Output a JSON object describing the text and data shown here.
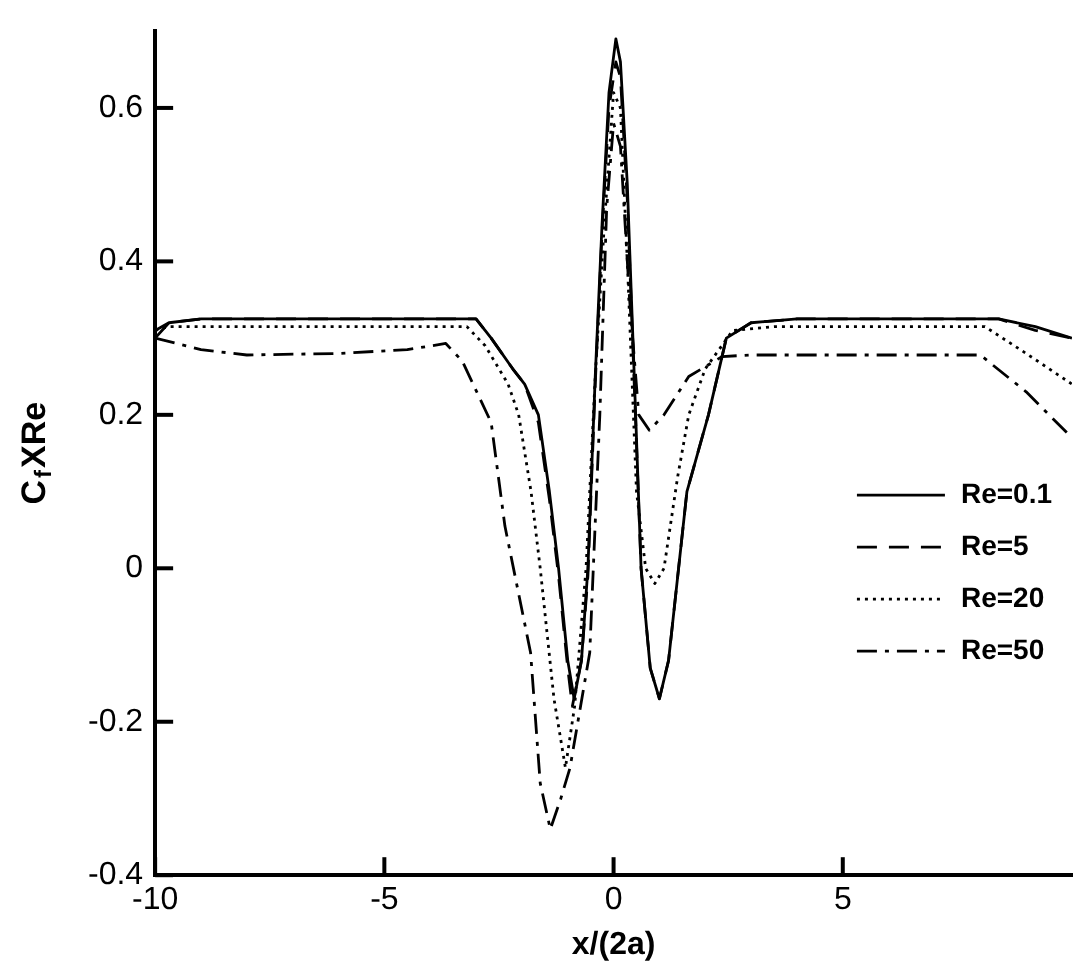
{
  "chart_data": {
    "type": "line",
    "xlabel": "x/(2a)",
    "ylabel": "C$_{f}$XRe",
    "xlim": [
      -10,
      10
    ],
    "ylim": [
      -0.4,
      0.7
    ],
    "xticks": [
      -10,
      -5,
      0,
      5
    ],
    "yticks": [
      -0.4,
      -0.2,
      0,
      0.2,
      0.4,
      0.6
    ],
    "grid": false,
    "legend": "right",
    "marker": "none",
    "series": [
      {
        "name": "Re=0.1",
        "color": "#000000",
        "line_style": "solid",
        "x": [
          -10,
          -9.7,
          -9,
          -5,
          -3,
          -2.67,
          -2.2,
          -1.94,
          -1.64,
          -1.4,
          -1.2,
          -1,
          -0.86,
          -0.7,
          -0.56,
          -0.4,
          -0.25,
          -0.1,
          0.05,
          0.15,
          0.3,
          0.47,
          0.6,
          0.8,
          1,
          1.2,
          1.6,
          2.07,
          2.46,
          3,
          4,
          8.4,
          9.2,
          10
        ],
        "values": [
          0.31,
          0.32,
          0.325,
          0.325,
          0.325,
          0.3,
          0.26,
          0.24,
          0.2,
          0.1,
          0,
          -0.12,
          -0.17,
          -0.12,
          0,
          0.25,
          0.45,
          0.62,
          0.69,
          0.66,
          0.5,
          0.22,
          0,
          -0.13,
          -0.17,
          -0.12,
          0.1,
          0.2,
          0.3,
          0.32,
          0.325,
          0.325,
          0.315,
          0.3
        ]
      },
      {
        "name": "Re=5",
        "color": "#000000",
        "line_style": "dashed",
        "x": [
          -10,
          -9.7,
          -9,
          -5,
          -3,
          -2.67,
          -2.2,
          -1.94,
          -1.64,
          -1.4,
          -1.2,
          -1,
          -0.9,
          -0.7,
          -0.56,
          -0.4,
          -0.25,
          -0.1,
          0.05,
          0.15,
          0.3,
          0.47,
          0.6,
          0.8,
          1,
          1.2,
          1.6,
          2.07,
          2.46,
          3,
          4,
          8.4,
          9.2,
          10
        ],
        "values": [
          0.3,
          0.32,
          0.325,
          0.325,
          0.325,
          0.3,
          0.26,
          0.24,
          0.19,
          0.09,
          -0.01,
          -0.13,
          -0.18,
          -0.12,
          -0.01,
          0.24,
          0.44,
          0.6,
          0.66,
          0.64,
          0.48,
          0.21,
          0,
          -0.13,
          -0.17,
          -0.12,
          0.1,
          0.2,
          0.3,
          0.32,
          0.325,
          0.325,
          0.31,
          0.3
        ]
      },
      {
        "name": "Re=20",
        "color": "#000000",
        "line_style": "dotted",
        "x": [
          -10,
          -9.7,
          -5,
          -3.2,
          -2.8,
          -2.3,
          -2.07,
          -1.8,
          -1.6,
          -1.3,
          -1.05,
          -0.85,
          -0.6,
          -0.4,
          -0.2,
          0,
          0.15,
          0.3,
          0.5,
          0.7,
          0.9,
          1.1,
          1.4,
          1.64,
          2,
          2.6,
          3.5,
          8.1,
          9,
          10
        ],
        "values": [
          0.31,
          0.315,
          0.315,
          0.315,
          0.29,
          0.24,
          0.2,
          0.1,
          0,
          -0.17,
          -0.26,
          -0.18,
          0,
          0.25,
          0.45,
          0.62,
          0.6,
          0.4,
          0.1,
          0,
          -0.02,
          0,
          0.12,
          0.2,
          0.26,
          0.31,
          0.315,
          0.315,
          0.28,
          0.24
        ]
      },
      {
        "name": "Re=50",
        "color": "#000000",
        "line_style": "dashdot",
        "x": [
          -10,
          -9,
          -8,
          -6,
          -4.5,
          -3.66,
          -3.3,
          -2.67,
          -2.37,
          -1.81,
          -1.6,
          -1.38,
          -1.15,
          -0.95,
          -0.52,
          -0.3,
          -0.15,
          0,
          0.15,
          0.35,
          0.55,
          0.78,
          1.1,
          1.64,
          2.37,
          3,
          8,
          9,
          10
        ],
        "values": [
          0.3,
          0.285,
          0.278,
          0.28,
          0.285,
          0.293,
          0.27,
          0.19,
          0.055,
          -0.11,
          -0.28,
          -0.34,
          -0.3,
          -0.26,
          -0.11,
          0.2,
          0.47,
          0.58,
          0.55,
          0.35,
          0.2,
          0.18,
          0.2,
          0.25,
          0.276,
          0.278,
          0.278,
          0.23,
          0.17
        ]
      }
    ]
  }
}
